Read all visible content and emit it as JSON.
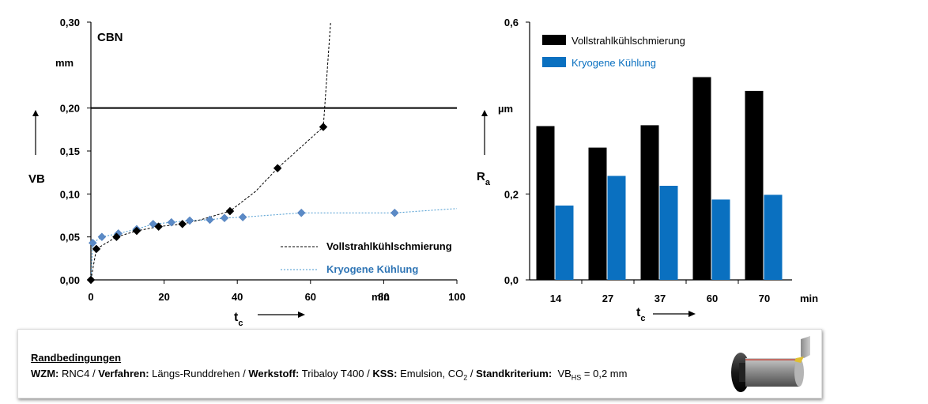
{
  "chart_data": [
    {
      "type": "line",
      "label": "CBN",
      "xlabel_main": "t",
      "xlabel_sub": "c",
      "xunit": "min",
      "ylabel": "VB",
      "yunit": "mm",
      "xlim": [
        0,
        100
      ],
      "ylim": [
        0,
        0.3
      ],
      "xticks": [
        "0",
        "20",
        "40",
        "60",
        "80",
        "100"
      ],
      "yticks": [
        "0,00",
        "0,05",
        "0,10",
        "0,15",
        "0,20",
        "0,30"
      ],
      "threshold": 0.2,
      "series": [
        {
          "name": "Vollstrahlkühlschmierung",
          "color": "#000000",
          "x": [
            0,
            1.5,
            7,
            12.5,
            18.5,
            25,
            38,
            51,
            63.5
          ],
          "y": [
            0,
            0.036,
            0.05,
            0.057,
            0.062,
            0.065,
            0.08,
            0.13,
            0.178
          ],
          "trend_x": [
            0,
            1.5,
            7,
            12.5,
            18.5,
            25,
            30,
            38,
            45,
            51,
            57,
            63.5,
            65.5
          ],
          "trend_y": [
            0,
            0.036,
            0.05,
            0.057,
            0.062,
            0.065,
            0.07,
            0.08,
            0.103,
            0.13,
            0.153,
            0.178,
            0.3
          ]
        },
        {
          "name": "Kryogene Kühlung",
          "color": "#5b8ac6",
          "x": [
            0,
            0.5,
            3,
            7.5,
            12.5,
            17,
            22,
            27,
            32.5,
            36.5,
            41.5,
            57.5,
            83
          ],
          "y": [
            0,
            0.043,
            0.05,
            0.054,
            0.059,
            0.065,
            0.067,
            0.069,
            0.07,
            0.072,
            0.073,
            0.078,
            0.078
          ],
          "trend_x": [
            0,
            0.5,
            3,
            7.5,
            12.5,
            17,
            22,
            27,
            32.5,
            36.5,
            41.5,
            57.5,
            83,
            100
          ],
          "trend_y": [
            0,
            0.043,
            0.05,
            0.054,
            0.059,
            0.065,
            0.067,
            0.069,
            0.07,
            0.072,
            0.073,
            0.078,
            0.078,
            0.083
          ]
        }
      ],
      "legend": [
        "Vollstrahlkühlschmierung",
        "Kryogene Kühlung"
      ]
    },
    {
      "type": "bar",
      "xlabel_main": "t",
      "xlabel_sub": "c",
      "xunit": "min",
      "ylabel_main": "R",
      "ylabel_sub": "a",
      "yunit": "µm",
      "ylim": [
        0,
        0.6
      ],
      "yticks": [
        "0,0",
        "0,2",
        "0,6"
      ],
      "categories": [
        "14",
        "27",
        "37",
        "60",
        "70"
      ],
      "series": [
        {
          "name": "Vollstrahlkühlschmierung",
          "color": "#000000",
          "values": [
            0.358,
            0.308,
            0.36,
            0.472,
            0.44
          ]
        },
        {
          "name": "Kryogene Kühlung",
          "color": "#0a70c0",
          "values": [
            0.173,
            0.242,
            0.219,
            0.187,
            0.198
          ]
        }
      ]
    }
  ],
  "conditions": {
    "title": "Randbedingungen",
    "wzm_label": "WZM:",
    "wzm_value": "RNC4 / ",
    "verfahren_label": "Verfahren:",
    "verfahren_value": "Längs-Runddrehen / ",
    "werkstoff_label": "Werkstoff:",
    "werkstoff_value": "Tribaloy T400 / ",
    "kss_label": "KSS:",
    "kss_value": "Emulsion, CO",
    "kss_sub": "2",
    "kss_tail": " / ",
    "kriterium_label": "Standkriterium:",
    "kriterium_prefix": "VB",
    "kriterium_sub": "HS",
    "kriterium_value": " = 0,2 mm"
  }
}
